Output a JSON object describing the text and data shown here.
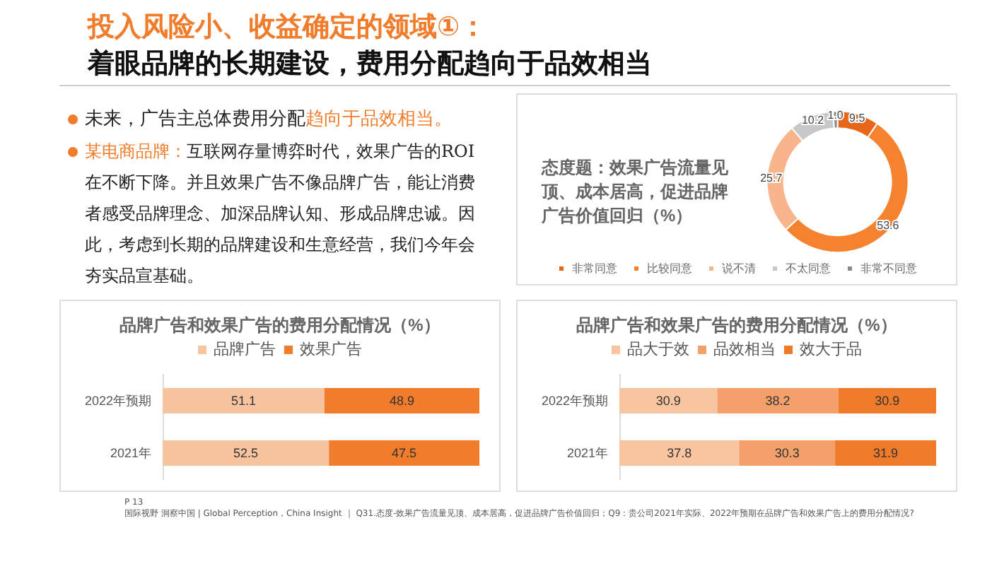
{
  "chart_data": [
    {
      "type": "other",
      "title": "投入风险小、收益确定的领域①：",
      "subtitle": "着眼品牌的长期建设，费用分配趋向于品效相当",
      "annotations": [
        "未来，广告主总体费用分配",
        "趋向于品效相当。",
        "某电商品牌：",
        "互联网存量博弈时代，效果广告的ROI在不断下降。并且效果广告不像品牌广告，能让消费者感受品牌理念、加深品牌认知、形成品牌忠诚。因此，考虑到长期的品牌建设和生意经营，我们今年会夯实品宣基础。",
        "P 13",
        "国际视野 洞察中国 | Global Perception，China Insight ｜ Q31.态度-效果广告流量见顶、成本居高，促进品牌广告价值回归；Q9：贵公司2021年实际、2022年预期在品牌广告和效果广告上的费用分配情况?"
      ]
    },
    {
      "type": "donut",
      "title": "态度题：效果广告流量见顶、成本居高，促进品牌广告价值回归（%）",
      "categories": [
        "非常同意",
        "比较同意",
        "说不清",
        "不太同意",
        "非常不同意"
      ],
      "values": [
        9.5,
        53.6,
        25.7,
        10.2,
        1.0
      ],
      "value_labels": [
        "9.5",
        "53.6",
        "25.7",
        "10.2",
        "1.0"
      ],
      "colors": [
        "#e8661a",
        "#f4822f",
        "#f8b48a",
        "#c8c8c8",
        "#8a8a8a"
      ],
      "legend": "bottom"
    },
    {
      "type": "bar",
      "orientation": "horizontal",
      "stacked": true,
      "title": "品牌广告和效果广告的费用分配情况（%）",
      "categories": [
        "2022年预期",
        "2021年"
      ],
      "series": [
        {
          "name": "品牌广告",
          "color": "#f8c4a0",
          "values": [
            51.1,
            52.5
          ]
        },
        {
          "name": "效果广告",
          "color": "#f07c2c",
          "values": [
            48.9,
            47.5
          ]
        }
      ],
      "data_labels": true,
      "legend": "top",
      "tick_labels": "y"
    },
    {
      "type": "bar",
      "orientation": "horizontal",
      "stacked": true,
      "title": "品牌广告和效果广告的费用分配情况（%）",
      "categories": [
        "2022年预期",
        "2021年"
      ],
      "series": [
        {
          "name": "品大于效",
          "color": "#f9c4a0",
          "values": [
            30.9,
            37.8
          ]
        },
        {
          "name": "品效相当",
          "color": "#f4a06a",
          "values": [
            38.2,
            30.3
          ]
        },
        {
          "name": "效大于品",
          "color": "#ee7a2a",
          "values": [
            30.9,
            31.9
          ]
        }
      ],
      "data_labels": true,
      "legend": "top",
      "tick_labels": "y"
    }
  ]
}
